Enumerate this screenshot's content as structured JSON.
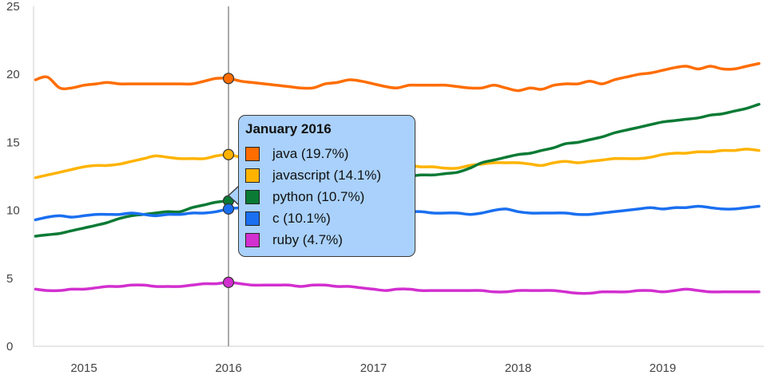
{
  "chart_data": {
    "type": "line",
    "title": "",
    "xlabel": "",
    "ylabel": "",
    "ylim": [
      0,
      25
    ],
    "xlim": [
      "2014-09",
      "2019-09"
    ],
    "y_ticks": [
      "0",
      "5",
      "10",
      "15",
      "20",
      "25"
    ],
    "x_ticks": [
      "2015",
      "2016",
      "2017",
      "2018",
      "2019"
    ],
    "grid": false,
    "legend": "none",
    "x": [
      "2014-09",
      "2014-10",
      "2014-11",
      "2014-12",
      "2015-01",
      "2015-02",
      "2015-03",
      "2015-04",
      "2015-05",
      "2015-06",
      "2015-07",
      "2015-08",
      "2015-09",
      "2015-10",
      "2015-11",
      "2015-12",
      "2016-01",
      "2016-02",
      "2016-03",
      "2016-04",
      "2016-05",
      "2016-06",
      "2016-07",
      "2016-08",
      "2016-09",
      "2016-10",
      "2016-11",
      "2016-12",
      "2017-01",
      "2017-02",
      "2017-03",
      "2017-04",
      "2017-05",
      "2017-06",
      "2017-07",
      "2017-08",
      "2017-09",
      "2017-10",
      "2017-11",
      "2017-12",
      "2018-01",
      "2018-02",
      "2018-03",
      "2018-04",
      "2018-05",
      "2018-06",
      "2018-07",
      "2018-08",
      "2018-09",
      "2018-10",
      "2018-11",
      "2018-12",
      "2019-01",
      "2019-02",
      "2019-03",
      "2019-04",
      "2019-05",
      "2019-06",
      "2019-07",
      "2019-08",
      "2019-09"
    ],
    "series": [
      {
        "name": "java",
        "color": "#ff6d00",
        "values": [
          19.6,
          19.8,
          19.0,
          19.0,
          19.2,
          19.3,
          19.4,
          19.3,
          19.3,
          19.3,
          19.3,
          19.3,
          19.3,
          19.3,
          19.5,
          19.7,
          19.7,
          19.5,
          19.4,
          19.3,
          19.2,
          19.1,
          19.0,
          19.0,
          19.3,
          19.4,
          19.6,
          19.5,
          19.3,
          19.1,
          19.0,
          19.2,
          19.2,
          19.2,
          19.2,
          19.1,
          19.0,
          19.0,
          19.2,
          19.0,
          18.8,
          19.0,
          18.9,
          19.2,
          19.3,
          19.3,
          19.5,
          19.3,
          19.6,
          19.8,
          20.0,
          20.1,
          20.3,
          20.5,
          20.6,
          20.4,
          20.6,
          20.4,
          20.4,
          20.6,
          20.8
        ]
      },
      {
        "name": "javascript",
        "color": "#ffb300",
        "values": [
          12.4,
          12.6,
          12.8,
          13.0,
          13.2,
          13.3,
          13.3,
          13.4,
          13.6,
          13.8,
          14.0,
          13.9,
          13.8,
          13.8,
          13.8,
          14.0,
          14.1,
          13.9,
          13.8,
          13.7,
          13.6,
          13.5,
          13.5,
          13.4,
          13.4,
          13.3,
          13.3,
          13.3,
          13.3,
          13.3,
          13.3,
          13.3,
          13.2,
          13.2,
          13.1,
          13.1,
          13.3,
          13.4,
          13.5,
          13.5,
          13.5,
          13.4,
          13.3,
          13.5,
          13.6,
          13.5,
          13.6,
          13.7,
          13.8,
          13.8,
          13.8,
          13.9,
          14.1,
          14.2,
          14.2,
          14.3,
          14.3,
          14.4,
          14.4,
          14.5,
          14.4
        ]
      },
      {
        "name": "python",
        "color": "#0a7a35",
        "values": [
          8.1,
          8.2,
          8.3,
          8.5,
          8.7,
          8.9,
          9.1,
          9.4,
          9.6,
          9.7,
          9.8,
          9.9,
          9.9,
          10.2,
          10.4,
          10.6,
          10.7,
          10.8,
          10.9,
          11.1,
          11.3,
          11.5,
          11.7,
          11.8,
          11.9,
          12.0,
          12.0,
          12.1,
          12.2,
          12.3,
          12.4,
          12.5,
          12.6,
          12.6,
          12.7,
          12.8,
          13.1,
          13.5,
          13.7,
          13.9,
          14.1,
          14.2,
          14.4,
          14.6,
          14.9,
          15.0,
          15.2,
          15.4,
          15.7,
          15.9,
          16.1,
          16.3,
          16.5,
          16.6,
          16.7,
          16.8,
          17.0,
          17.1,
          17.3,
          17.5,
          17.8
        ]
      },
      {
        "name": "c",
        "color": "#1a6ff0",
        "values": [
          9.3,
          9.5,
          9.6,
          9.5,
          9.6,
          9.7,
          9.7,
          9.7,
          9.8,
          9.7,
          9.6,
          9.7,
          9.7,
          9.8,
          9.8,
          9.9,
          10.1,
          10.2,
          10.3,
          10.2,
          10.1,
          10.0,
          10.0,
          10.1,
          10.0,
          10.0,
          10.0,
          10.1,
          10.0,
          9.9,
          9.9,
          9.9,
          9.9,
          9.8,
          9.8,
          9.8,
          9.7,
          9.8,
          10.0,
          10.1,
          9.9,
          9.8,
          9.8,
          9.8,
          9.8,
          9.7,
          9.7,
          9.8,
          9.9,
          10.0,
          10.1,
          10.2,
          10.1,
          10.2,
          10.2,
          10.3,
          10.2,
          10.1,
          10.1,
          10.2,
          10.3
        ]
      },
      {
        "name": "ruby",
        "color": "#d22fcf",
        "values": [
          4.2,
          4.1,
          4.1,
          4.2,
          4.2,
          4.3,
          4.4,
          4.4,
          4.5,
          4.5,
          4.4,
          4.4,
          4.4,
          4.5,
          4.6,
          4.6,
          4.7,
          4.6,
          4.5,
          4.5,
          4.5,
          4.5,
          4.4,
          4.5,
          4.5,
          4.4,
          4.4,
          4.3,
          4.2,
          4.1,
          4.2,
          4.2,
          4.1,
          4.1,
          4.1,
          4.1,
          4.1,
          4.1,
          4.0,
          4.0,
          4.1,
          4.1,
          4.1,
          4.1,
          4.0,
          3.9,
          3.9,
          4.0,
          4.0,
          4.0,
          4.1,
          4.1,
          4.0,
          4.1,
          4.2,
          4.1,
          4.0,
          4.0,
          4.0,
          4.0,
          4.0
        ]
      }
    ],
    "focus": {
      "x": "2016-01",
      "tooltip_title": "January 2016",
      "items": [
        {
          "name": "java",
          "color": "#ff6d00",
          "value": 19.7,
          "label": "java (19.7%)"
        },
        {
          "name": "javascript",
          "color": "#ffb300",
          "value": 14.1,
          "label": "javascript (14.1%)"
        },
        {
          "name": "python",
          "color": "#0a7a35",
          "value": 10.7,
          "label": "python (10.7%)"
        },
        {
          "name": "c",
          "color": "#1a6ff0",
          "value": 10.1,
          "label": "c (10.1%)"
        },
        {
          "name": "ruby",
          "color": "#d22fcf",
          "value": 4.7,
          "label": "ruby (4.7%)"
        }
      ]
    }
  }
}
